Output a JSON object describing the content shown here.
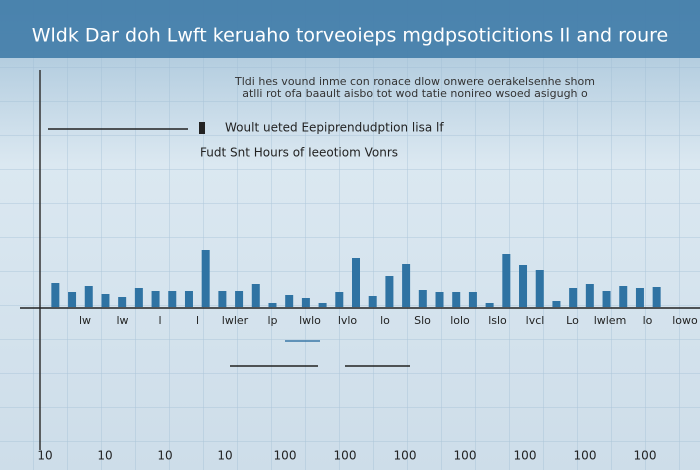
{
  "chart_data": {
    "type": "bar",
    "title": "Wldk Dar doh Lwft keruaho torveoieps mgdpsoticitions Il and roure",
    "subtitle": [
      "Tldi hes vound inme con ronace dlow onwere oerakelsenhe shom",
      "atlli rot ofa baault aisbo tot wod tatie nonireo wsoed asigugh o"
    ],
    "annotations": [
      "Woult ueted Eepiprendudption lisa lf",
      "Fudt Snt Hours of Ieeotiom Vonrs"
    ],
    "color": "#2f73a3",
    "categories": [
      null,
      null,
      null,
      null,
      null,
      null,
      null,
      null,
      null,
      null,
      null,
      null,
      null,
      null,
      null,
      null,
      null,
      null,
      null,
      null,
      null,
      null,
      null,
      null,
      null,
      null,
      null,
      null,
      null,
      null,
      null,
      null,
      null,
      null,
      null,
      null,
      null
    ],
    "values": [
      24,
      15,
      21,
      13,
      10,
      19,
      16,
      16,
      16,
      57,
      16,
      16,
      23,
      4,
      12,
      9,
      4,
      15,
      49,
      11,
      31,
      43,
      17,
      15,
      15,
      15,
      4,
      53,
      42,
      37,
      6,
      19,
      23,
      16,
      21,
      19,
      20
    ],
    "ylim": [
      0,
      60
    ],
    "axis_labels": [
      "lw",
      "lw",
      "l",
      "l",
      "lwler",
      "lp",
      "lwlo",
      "lvlo",
      "lo",
      "Slo",
      "lolo",
      "lslo",
      "lvcl",
      "Lo",
      "lwlem",
      "lo",
      "lowo"
    ],
    "bottom_labels": [
      "10",
      "10",
      "10",
      "10",
      "100",
      "100",
      "100",
      "100",
      "100",
      "100",
      "100"
    ],
    "grid": true
  }
}
